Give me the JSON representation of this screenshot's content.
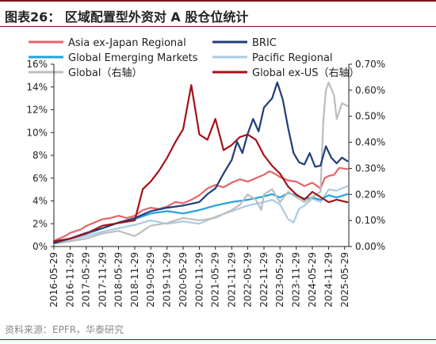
{
  "header": {
    "title": "图表26：  区域配置型外资对 A 股仓位统计"
  },
  "footer": {
    "source": "资料来源：EPFR，华泰研究"
  },
  "chart_data": {
    "type": "line",
    "title": "区域配置型外资对 A 股仓位统计",
    "legend_placement": "top",
    "grid": false,
    "y_left": {
      "ylim": [
        0,
        16
      ],
      "ticks": [
        "0%",
        "2%",
        "4%",
        "6%",
        "8%",
        "10%",
        "12%",
        "14%",
        "16%"
      ],
      "tick_values": [
        0,
        2,
        4,
        6,
        8,
        10,
        12,
        14,
        16
      ]
    },
    "y_right": {
      "ylim": [
        0,
        0.7
      ],
      "ticks": [
        "0.00%",
        "0.10%",
        "0.20%",
        "0.30%",
        "0.40%",
        "0.50%",
        "0.60%",
        "0.70%"
      ],
      "tick_values": [
        0,
        0.1,
        0.2,
        0.3,
        0.4,
        0.5,
        0.6,
        0.7
      ]
    },
    "x_ticks": [
      "2016-05-29",
      "2016-11-29",
      "2017-05-29",
      "2017-11-29",
      "2018-05-29",
      "2018-11-29",
      "2019-05-29",
      "2019-11-29",
      "2020-05-29",
      "2020-11-29",
      "2021-05-29",
      "2021-11-29",
      "2022-05-29",
      "2022-11-29",
      "2023-05-29",
      "2023-11-29",
      "2024-05-29",
      "2024-11-29",
      "2025-05-29"
    ],
    "series": [
      {
        "name": "Asia ex-Japan Regional",
        "axis": "left",
        "color": "#e8636a",
        "width": 2.2,
        "points": [
          [
            "2016-05-29",
            0.5
          ],
          [
            "2016-09-29",
            0.9
          ],
          [
            "2016-11-29",
            1.2
          ],
          [
            "2017-03-29",
            1.5
          ],
          [
            "2017-05-29",
            1.8
          ],
          [
            "2017-08-29",
            2.1
          ],
          [
            "2017-11-29",
            2.4
          ],
          [
            "2018-02-28",
            2.5
          ],
          [
            "2018-05-29",
            2.7
          ],
          [
            "2018-08-29",
            2.5
          ],
          [
            "2018-11-29",
            2.7
          ],
          [
            "2019-02-28",
            3.2
          ],
          [
            "2019-05-29",
            3.4
          ],
          [
            "2019-08-29",
            3.3
          ],
          [
            "2019-11-29",
            3.5
          ],
          [
            "2020-02-29",
            3.9
          ],
          [
            "2020-05-29",
            3.8
          ],
          [
            "2020-08-29",
            4.1
          ],
          [
            "2020-11-29",
            4.5
          ],
          [
            "2021-02-28",
            5.1
          ],
          [
            "2021-05-29",
            5.4
          ],
          [
            "2021-08-29",
            5.2
          ],
          [
            "2021-11-29",
            5.6
          ],
          [
            "2022-02-28",
            5.9
          ],
          [
            "2022-05-29",
            5.7
          ],
          [
            "2022-08-29",
            6.0
          ],
          [
            "2022-11-29",
            6.3
          ],
          [
            "2023-01-29",
            6.6
          ],
          [
            "2023-03-29",
            6.4
          ],
          [
            "2023-05-29",
            6.1
          ],
          [
            "2023-08-29",
            5.8
          ],
          [
            "2023-11-29",
            5.7
          ],
          [
            "2024-02-29",
            5.3
          ],
          [
            "2024-05-29",
            5.6
          ],
          [
            "2024-08-29",
            5.1
          ],
          [
            "2024-10-15",
            6.0
          ],
          [
            "2024-11-29",
            6.2
          ],
          [
            "2025-01-29",
            6.3
          ],
          [
            "2025-03-29",
            6.9
          ],
          [
            "2025-06-29",
            6.8
          ]
        ]
      },
      {
        "name": "BRIC",
        "axis": "left",
        "color": "#1f3d7a",
        "width": 2.2,
        "points": [
          [
            "2016-05-29",
            0.3
          ],
          [
            "2016-11-29",
            0.7
          ],
          [
            "2017-05-29",
            1.2
          ],
          [
            "2017-11-29",
            1.6
          ],
          [
            "2018-05-29",
            2.1
          ],
          [
            "2018-11-29",
            2.5
          ],
          [
            "2019-05-29",
            3.1
          ],
          [
            "2019-11-29",
            3.4
          ],
          [
            "2020-05-29",
            3.6
          ],
          [
            "2020-11-29",
            3.9
          ],
          [
            "2021-02-28",
            4.6
          ],
          [
            "2021-05-29",
            5.1
          ],
          [
            "2021-08-29",
            6.4
          ],
          [
            "2021-11-29",
            7.6
          ],
          [
            "2022-01-29",
            9.2
          ],
          [
            "2022-03-29",
            8.2
          ],
          [
            "2022-05-29",
            9.9
          ],
          [
            "2022-07-29",
            11.2
          ],
          [
            "2022-09-29",
            10.1
          ],
          [
            "2022-11-29",
            12.2
          ],
          [
            "2023-02-28",
            13.0
          ],
          [
            "2023-04-29",
            14.4
          ],
          [
            "2023-06-29",
            12.9
          ],
          [
            "2023-08-29",
            10.4
          ],
          [
            "2023-10-29",
            8.2
          ],
          [
            "2023-12-29",
            7.4
          ],
          [
            "2024-02-29",
            7.2
          ],
          [
            "2024-04-29",
            8.2
          ],
          [
            "2024-06-29",
            7.0
          ],
          [
            "2024-08-29",
            7.1
          ],
          [
            "2024-10-29",
            8.8
          ],
          [
            "2024-12-29",
            7.8
          ],
          [
            "2025-02-28",
            7.3
          ],
          [
            "2025-04-29",
            7.8
          ],
          [
            "2025-06-29",
            7.5
          ]
        ]
      },
      {
        "name": "Global Emerging Markets",
        "axis": "left",
        "color": "#22a3db",
        "width": 2.2,
        "points": [
          [
            "2016-05-29",
            0.4
          ],
          [
            "2016-11-29",
            0.7
          ],
          [
            "2017-05-29",
            1.1
          ],
          [
            "2017-11-29",
            1.6
          ],
          [
            "2018-05-29",
            2.1
          ],
          [
            "2018-11-29",
            2.4
          ],
          [
            "2019-05-29",
            2.9
          ],
          [
            "2019-11-29",
            3.1
          ],
          [
            "2020-05-29",
            2.9
          ],
          [
            "2020-11-29",
            3.2
          ],
          [
            "2021-05-29",
            3.6
          ],
          [
            "2021-11-29",
            3.9
          ],
          [
            "2022-05-29",
            4.1
          ],
          [
            "2022-11-29",
            4.4
          ],
          [
            "2023-02-28",
            4.6
          ],
          [
            "2023-05-29",
            4.3
          ],
          [
            "2023-08-29",
            4.7
          ],
          [
            "2023-11-29",
            4.5
          ],
          [
            "2024-02-29",
            4.2
          ],
          [
            "2024-05-29",
            4.3
          ],
          [
            "2024-08-29",
            4.1
          ],
          [
            "2024-11-29",
            4.5
          ],
          [
            "2025-02-28",
            4.3
          ],
          [
            "2025-06-29",
            4.6
          ]
        ]
      },
      {
        "name": "Pacific Regional",
        "axis": "left",
        "color": "#a9cce3",
        "width": 2.2,
        "points": [
          [
            "2016-05-29",
            0.3
          ],
          [
            "2016-11-29",
            0.6
          ],
          [
            "2017-05-29",
            0.9
          ],
          [
            "2017-11-29",
            1.3
          ],
          [
            "2018-05-29",
            1.6
          ],
          [
            "2018-11-29",
            1.9
          ],
          [
            "2019-05-29",
            2.3
          ],
          [
            "2019-11-29",
            2.0
          ],
          [
            "2020-05-29",
            2.2
          ],
          [
            "2020-11-29",
            2.0
          ],
          [
            "2021-05-29",
            2.6
          ],
          [
            "2021-11-29",
            3.1
          ],
          [
            "2022-05-29",
            3.6
          ],
          [
            "2022-11-29",
            3.9
          ],
          [
            "2023-02-28",
            4.1
          ],
          [
            "2023-05-29",
            3.7
          ],
          [
            "2023-08-29",
            2.4
          ],
          [
            "2023-10-29",
            2.1
          ],
          [
            "2023-12-29",
            3.3
          ],
          [
            "2024-02-29",
            3.6
          ],
          [
            "2024-05-29",
            4.2
          ],
          [
            "2024-08-29",
            3.9
          ],
          [
            "2024-11-29",
            5.0
          ],
          [
            "2025-02-28",
            4.9
          ],
          [
            "2025-06-29",
            5.3
          ]
        ]
      },
      {
        "name": "Global（右轴）",
        "axis": "right",
        "color": "#bdbdbd",
        "width": 2.2,
        "points": [
          [
            "2016-05-29",
            0.01
          ],
          [
            "2016-11-29",
            0.02
          ],
          [
            "2017-05-29",
            0.03
          ],
          [
            "2017-11-29",
            0.05
          ],
          [
            "2018-05-29",
            0.06
          ],
          [
            "2018-11-29",
            0.04
          ],
          [
            "2019-05-29",
            0.08
          ],
          [
            "2019-11-29",
            0.09
          ],
          [
            "2020-05-29",
            0.11
          ],
          [
            "2020-11-29",
            0.1
          ],
          [
            "2021-05-29",
            0.11
          ],
          [
            "2021-11-29",
            0.14
          ],
          [
            "2022-02-28",
            0.16
          ],
          [
            "2022-05-29",
            0.2
          ],
          [
            "2022-08-29",
            0.18
          ],
          [
            "2022-10-29",
            0.14
          ],
          [
            "2022-11-29",
            0.2
          ],
          [
            "2023-02-28",
            0.22
          ],
          [
            "2023-05-29",
            0.17
          ],
          [
            "2023-08-29",
            0.21
          ],
          [
            "2023-11-29",
            0.19
          ],
          [
            "2024-02-29",
            0.17
          ],
          [
            "2024-05-29",
            0.19
          ],
          [
            "2024-08-29",
            0.21
          ],
          [
            "2024-09-29",
            0.48
          ],
          [
            "2024-10-29",
            0.6
          ],
          [
            "2024-11-29",
            0.63
          ],
          [
            "2025-01-29",
            0.58
          ],
          [
            "2025-02-28",
            0.49
          ],
          [
            "2025-04-29",
            0.55
          ],
          [
            "2025-06-29",
            0.54
          ]
        ]
      },
      {
        "name": "Global ex-US（右轴）",
        "axis": "right",
        "color": "#a31217",
        "width": 2.2,
        "points": [
          [
            "2016-05-29",
            0.02
          ],
          [
            "2016-11-29",
            0.03
          ],
          [
            "2017-05-29",
            0.05
          ],
          [
            "2017-11-29",
            0.08
          ],
          [
            "2018-05-29",
            0.09
          ],
          [
            "2018-11-29",
            0.1
          ],
          [
            "2019-02-28",
            0.22
          ],
          [
            "2019-05-29",
            0.25
          ],
          [
            "2019-08-29",
            0.29
          ],
          [
            "2019-11-29",
            0.34
          ],
          [
            "2020-02-29",
            0.4
          ],
          [
            "2020-05-29",
            0.45
          ],
          [
            "2020-08-29",
            0.62
          ],
          [
            "2020-11-29",
            0.43
          ],
          [
            "2021-02-28",
            0.41
          ],
          [
            "2021-05-29",
            0.49
          ],
          [
            "2021-08-29",
            0.37
          ],
          [
            "2021-11-29",
            0.39
          ],
          [
            "2022-02-28",
            0.42
          ],
          [
            "2022-05-29",
            0.43
          ],
          [
            "2022-08-29",
            0.41
          ],
          [
            "2022-11-29",
            0.35
          ],
          [
            "2023-02-28",
            0.31
          ],
          [
            "2023-05-29",
            0.28
          ],
          [
            "2023-08-29",
            0.23
          ],
          [
            "2023-11-29",
            0.2
          ],
          [
            "2024-02-29",
            0.18
          ],
          [
            "2024-05-29",
            0.21
          ],
          [
            "2024-08-29",
            0.19
          ],
          [
            "2024-11-29",
            0.17
          ],
          [
            "2025-02-28",
            0.18
          ],
          [
            "2025-06-29",
            0.17
          ]
        ]
      }
    ]
  }
}
